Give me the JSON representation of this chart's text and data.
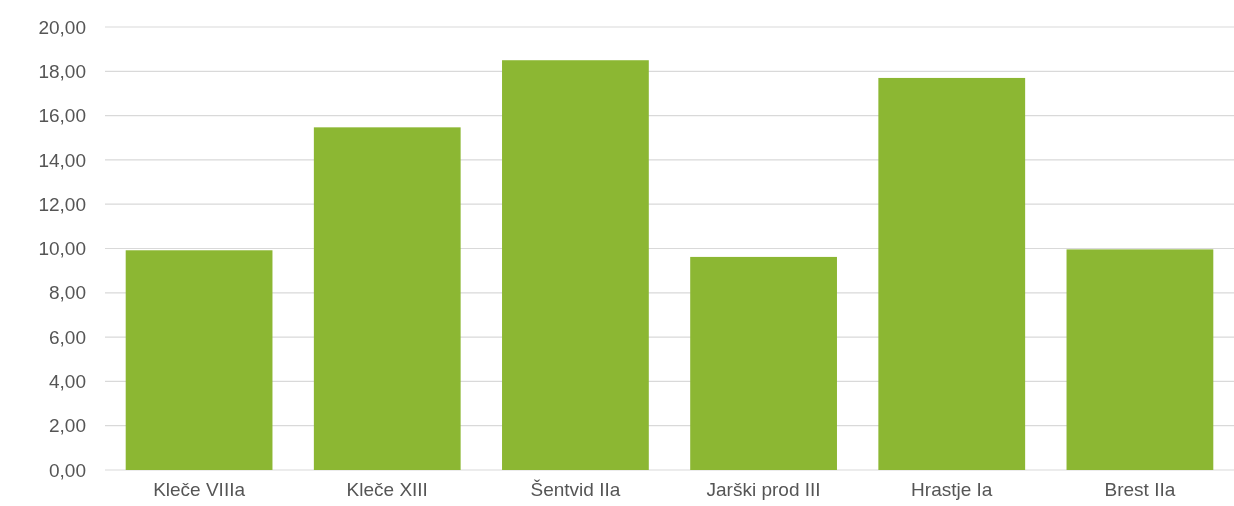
{
  "chart_data": {
    "type": "bar",
    "categories": [
      "Kleče VIIIa",
      "Kleče XIII",
      "Šentvid IIa",
      "Jarški prod III",
      "Hrastje Ia",
      "Brest IIa"
    ],
    "values": [
      9.92,
      15.47,
      18.5,
      9.62,
      17.7,
      9.96
    ],
    "color": "#8cb733",
    "ylim": [
      0,
      20
    ],
    "yticks": [
      {
        "value": 0,
        "label": "0,00"
      },
      {
        "value": 2,
        "label": "2,00"
      },
      {
        "value": 4,
        "label": "4,00"
      },
      {
        "value": 6,
        "label": "6,00"
      },
      {
        "value": 8,
        "label": "8,00"
      },
      {
        "value": 10,
        "label": "10,00"
      },
      {
        "value": 12,
        "label": "12,00"
      },
      {
        "value": 14,
        "label": "14,00"
      },
      {
        "value": 16,
        "label": "16,00"
      },
      {
        "value": 18,
        "label": "18,00"
      },
      {
        "value": 20,
        "label": "20,00"
      }
    ],
    "grid": "y"
  }
}
